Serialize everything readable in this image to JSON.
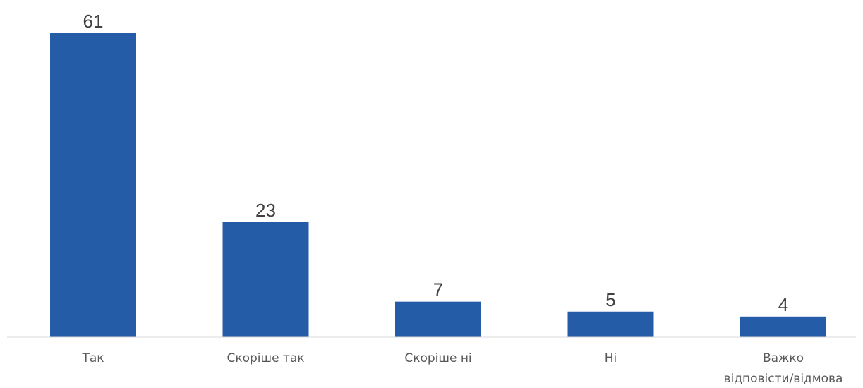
{
  "chart_data": {
    "type": "bar",
    "categories": [
      "Так",
      "Скоріше так",
      "Скоріше ні",
      "Ні",
      "Важко відповісти/відмова"
    ],
    "category_lines": [
      [
        "Так"
      ],
      [
        "Скоріше так"
      ],
      [
        "Скоріше ні"
      ],
      [
        "Ні"
      ],
      [
        "Важко",
        "відповісти/відмова"
      ]
    ],
    "values": [
      61,
      23,
      7,
      5,
      4
    ],
    "value_labels": [
      "61",
      "23",
      "7",
      "5",
      "4"
    ],
    "title": "",
    "xlabel": "",
    "ylabel": "",
    "ylim": [
      0,
      61
    ],
    "grid": false,
    "legend": "none",
    "bar_color": "#255CA8",
    "axis_color": "#D9D9D9"
  }
}
